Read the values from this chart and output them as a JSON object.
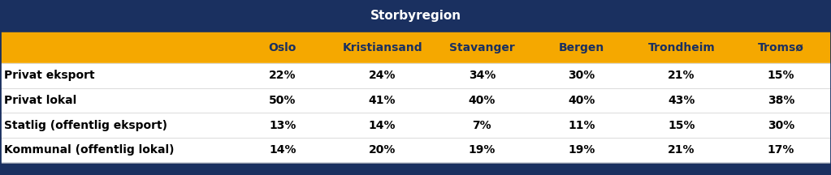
{
  "title": "Storbyregion",
  "header_bg": "#1a3060",
  "subheader_bg": "#f5a800",
  "row_bg_white": "#ffffff",
  "border_color": "#1a3060",
  "footer_bg": "#1a3060",
  "title_color": "#ffffff",
  "subheader_color": "#1a3060",
  "row_label_color": "#000000",
  "cell_color": "#000000",
  "columns": [
    "Oslo",
    "Kristiansand",
    "Stavanger",
    "Bergen",
    "Trondheim",
    "Tromsø"
  ],
  "rows": [
    "Privat eksport",
    "Privat lokal",
    "Statlig (offentlig eksport)",
    "Kommunal (offentlig lokal)"
  ],
  "data": [
    [
      "22%",
      "24%",
      "34%",
      "30%",
      "21%",
      "15%"
    ],
    [
      "50%",
      "41%",
      "40%",
      "40%",
      "43%",
      "38%"
    ],
    [
      "13%",
      "14%",
      "7%",
      "11%",
      "15%",
      "30%"
    ],
    [
      "14%",
      "20%",
      "19%",
      "19%",
      "21%",
      "17%"
    ]
  ],
  "title_fontsize": 11,
  "header_fontsize": 10,
  "cell_fontsize": 10,
  "row_label_fontsize": 10
}
